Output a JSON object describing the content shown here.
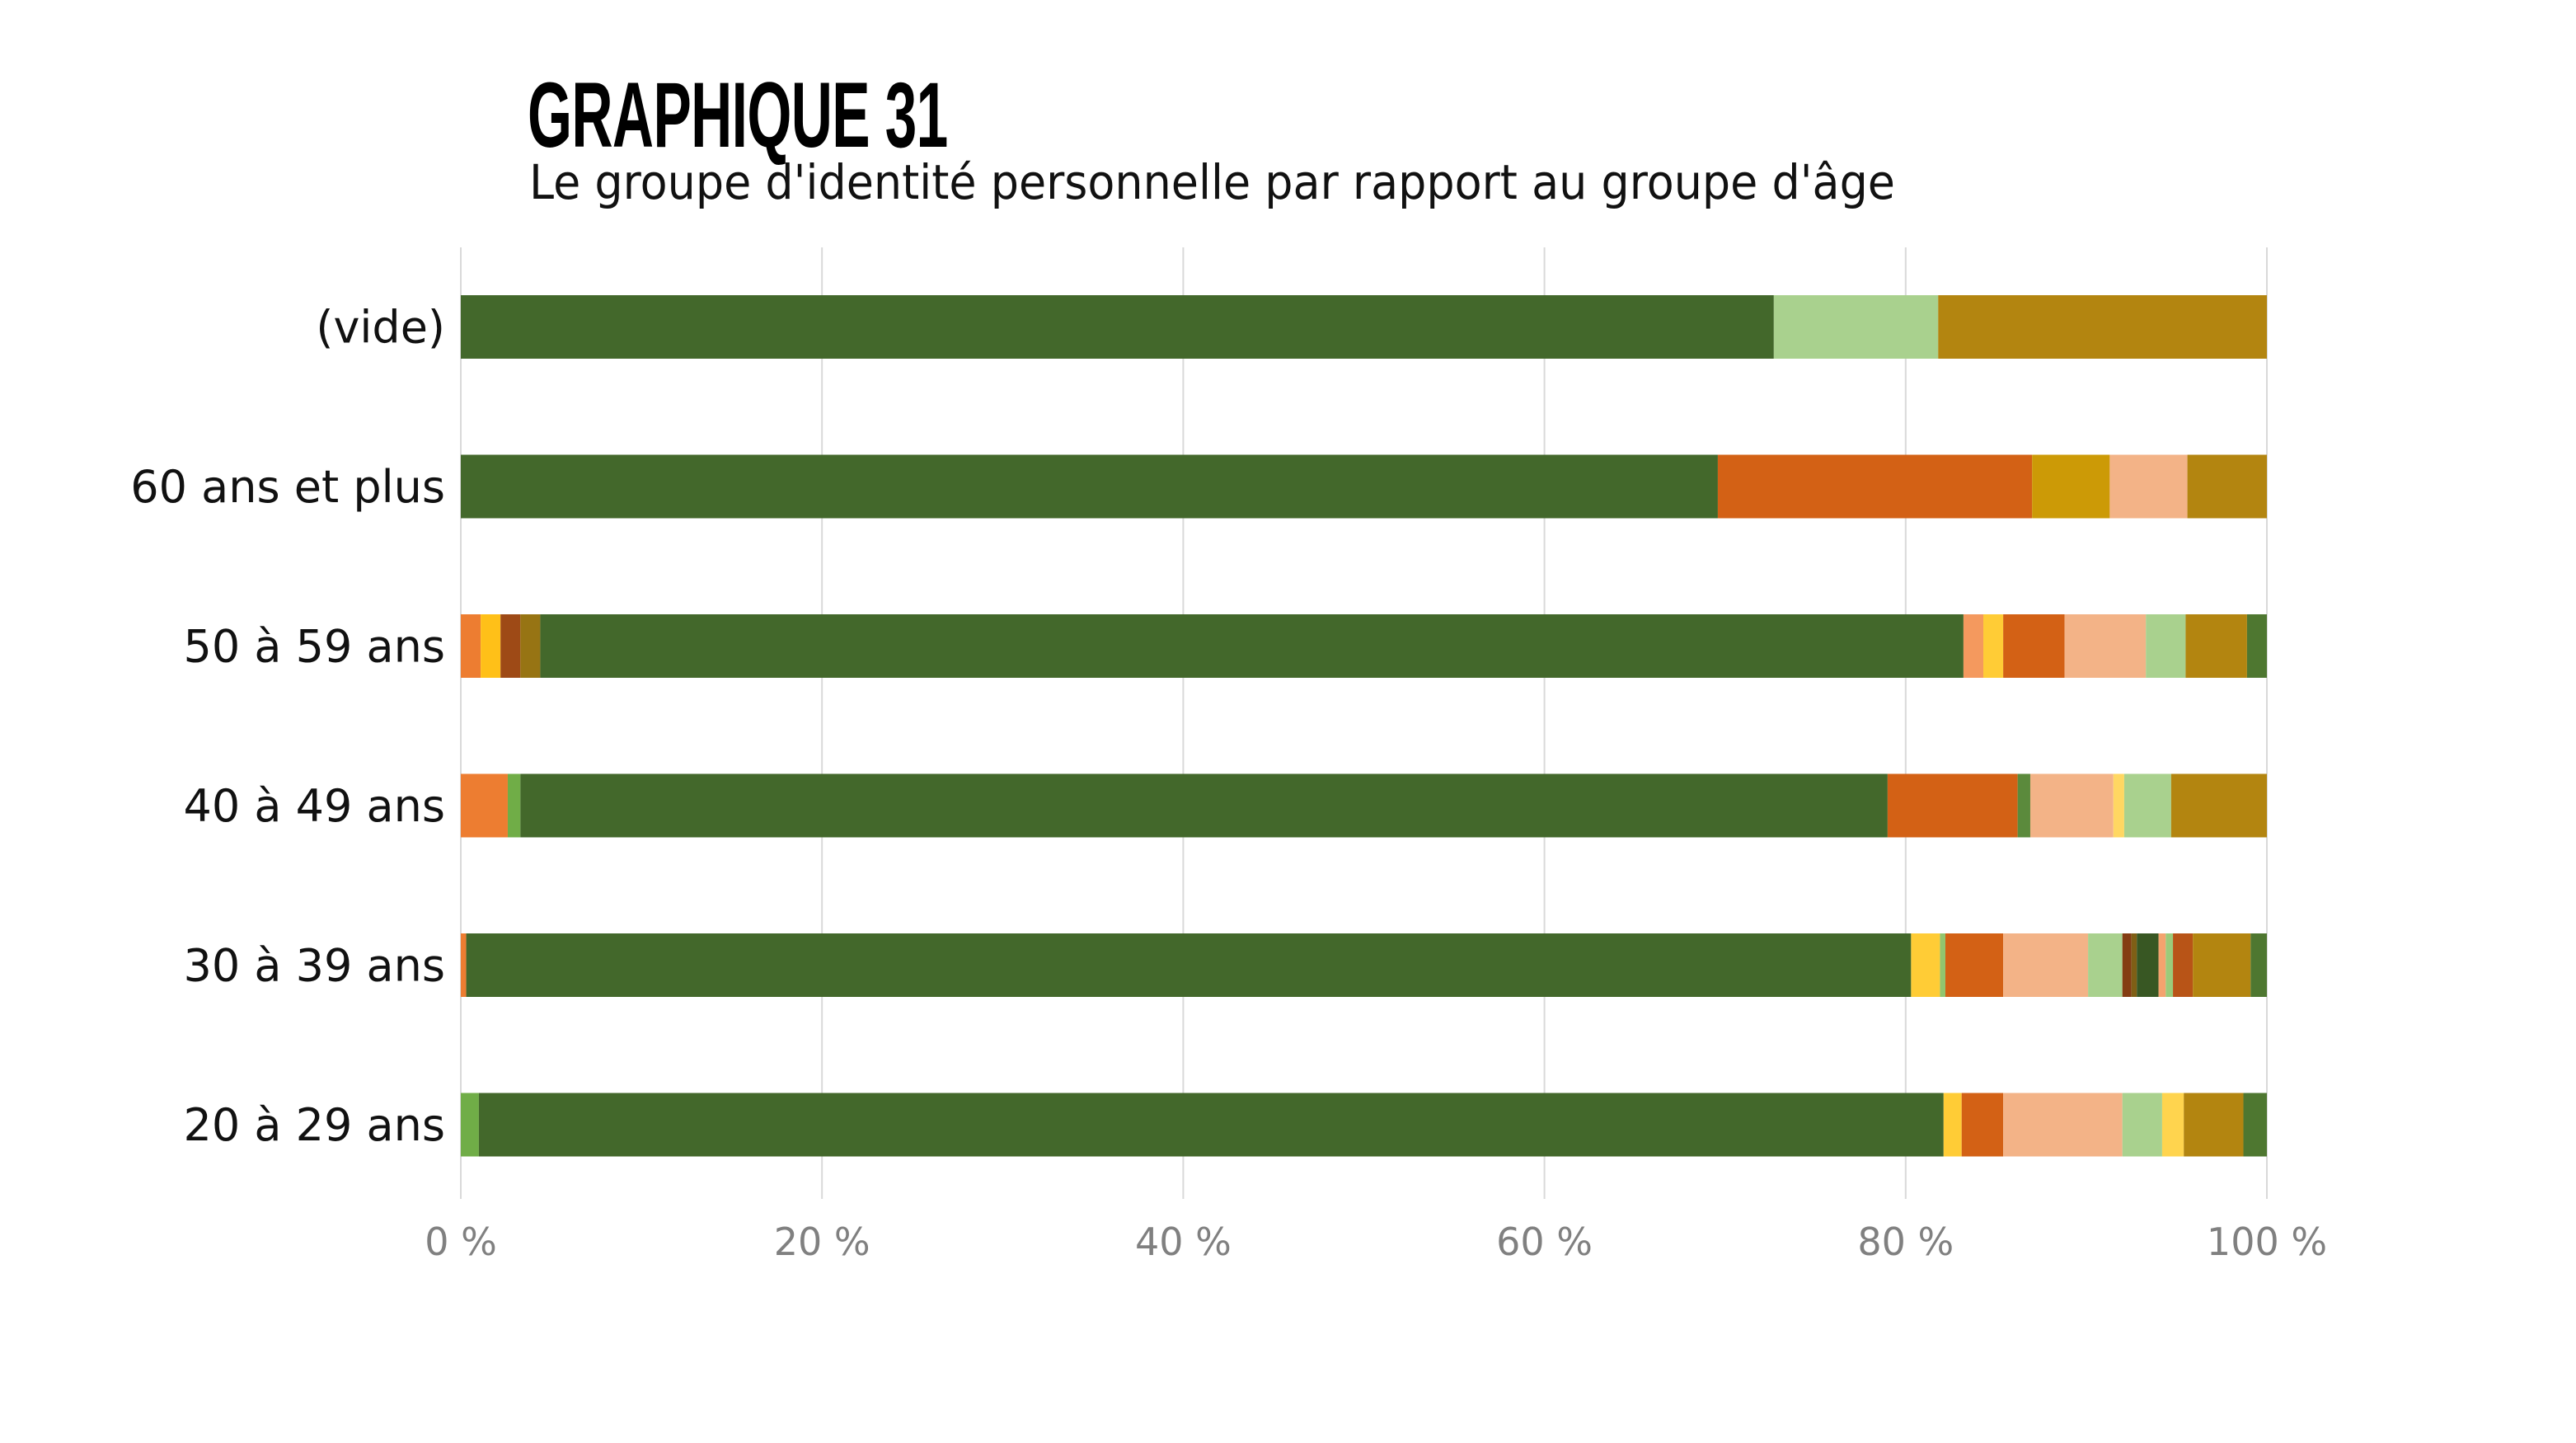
{
  "header": {
    "title": "GRAPHIQUE 31",
    "subtitle": "Le groupe d'identité personnelle par rapport au groupe d'âge"
  },
  "chart_data": {
    "type": "bar",
    "orientation": "horizontal",
    "stacked": "percent",
    "title": "GRAPHIQUE 31",
    "subtitle": "Le groupe d'identité personnelle par rapport au groupe d'âge",
    "xlabel": "",
    "ylabel": "",
    "xlim": [
      0,
      100
    ],
    "grid": true,
    "legend": "none",
    "x_ticks": [
      "0 %",
      "20 %",
      "40 %",
      "60 %",
      "80 %",
      "100 %"
    ],
    "x_tick_values": [
      0,
      20,
      40,
      60,
      80,
      100
    ],
    "categories": [
      "(vide)",
      "60 ans et plus",
      "50 à 59 ans",
      "40 à 49 ans",
      "30 à 39 ans",
      "20 à 29 ans"
    ],
    "bars": [
      {
        "category": "(vide)",
        "segments": [
          {
            "value": 72.7,
            "color": "#43682B"
          },
          {
            "value": 9.1,
            "color": "#A9D18E"
          },
          {
            "value": 18.2,
            "color": "#B38510"
          }
        ]
      },
      {
        "category": "60 ans et plus",
        "segments": [
          {
            "value": 69.6,
            "color": "#43682B"
          },
          {
            "value": 17.4,
            "color": "#D36115"
          },
          {
            "value": 4.3,
            "color": "#CC9A06"
          },
          {
            "value": 4.3,
            "color": "#F3B387"
          },
          {
            "value": 4.4,
            "color": "#B38510"
          }
        ]
      },
      {
        "category": "50 à 59 ans",
        "segments": [
          {
            "value": 1.1,
            "color": "#ED7D31"
          },
          {
            "value": 1.1,
            "color": "#FFC018"
          },
          {
            "value": 1.1,
            "color": "#9E4A16"
          },
          {
            "value": 1.1,
            "color": "#977413"
          },
          {
            "value": 78.8,
            "color": "#43682B"
          },
          {
            "value": 1.1,
            "color": "#F4995E"
          },
          {
            "value": 1.1,
            "color": "#FFCC36"
          },
          {
            "value": 3.4,
            "color": "#D36115"
          },
          {
            "value": 4.5,
            "color": "#F3B387"
          },
          {
            "value": 2.2,
            "color": "#A9D18E"
          },
          {
            "value": 3.4,
            "color": "#B38510"
          },
          {
            "value": 1.1,
            "color": "#4E7730"
          }
        ]
      },
      {
        "category": "40 à 49 ans",
        "segments": [
          {
            "value": 2.6,
            "color": "#ED7D31"
          },
          {
            "value": 0.7,
            "color": "#70AD47"
          },
          {
            "value": 75.7,
            "color": "#43682B"
          },
          {
            "value": 7.2,
            "color": "#D36115"
          },
          {
            "value": 0.7,
            "color": "#5B8A3C"
          },
          {
            "value": 4.6,
            "color": "#F3B387"
          },
          {
            "value": 0.6,
            "color": "#FFD762"
          },
          {
            "value": 2.6,
            "color": "#A9D18E"
          },
          {
            "value": 5.3,
            "color": "#B38510"
          }
        ]
      },
      {
        "category": "30 à 39 ans",
        "segments": [
          {
            "value": 0.3,
            "color": "#ED7D31"
          },
          {
            "value": 80.0,
            "color": "#43682B"
          },
          {
            "value": 1.6,
            "color": "#FFCC36"
          },
          {
            "value": 0.3,
            "color": "#92C56E"
          },
          {
            "value": 3.2,
            "color": "#D36115"
          },
          {
            "value": 4.7,
            "color": "#F3B387"
          },
          {
            "value": 1.9,
            "color": "#A9D18E"
          },
          {
            "value": 0.5,
            "color": "#843C12"
          },
          {
            "value": 0.3,
            "color": "#7F5F15"
          },
          {
            "value": 1.2,
            "color": "#385723"
          },
          {
            "value": 0.4,
            "color": "#F4A36E"
          },
          {
            "value": 0.4,
            "color": "#9BCB7A"
          },
          {
            "value": 1.1,
            "color": "#B85417"
          },
          {
            "value": 3.2,
            "color": "#B38510"
          },
          {
            "value": 0.9,
            "color": "#4E7730"
          }
        ]
      },
      {
        "category": "20 à 29 ans",
        "segments": [
          {
            "value": 1.0,
            "color": "#70AD47"
          },
          {
            "value": 81.1,
            "color": "#43682B"
          },
          {
            "value": 1.0,
            "color": "#FFCC36"
          },
          {
            "value": 2.3,
            "color": "#D36115"
          },
          {
            "value": 6.6,
            "color": "#F3B387"
          },
          {
            "value": 2.2,
            "color": "#A9D18E"
          },
          {
            "value": 1.2,
            "color": "#FFD44E"
          },
          {
            "value": 3.3,
            "color": "#B38510"
          },
          {
            "value": 1.3,
            "color": "#4E7730"
          }
        ]
      }
    ]
  }
}
